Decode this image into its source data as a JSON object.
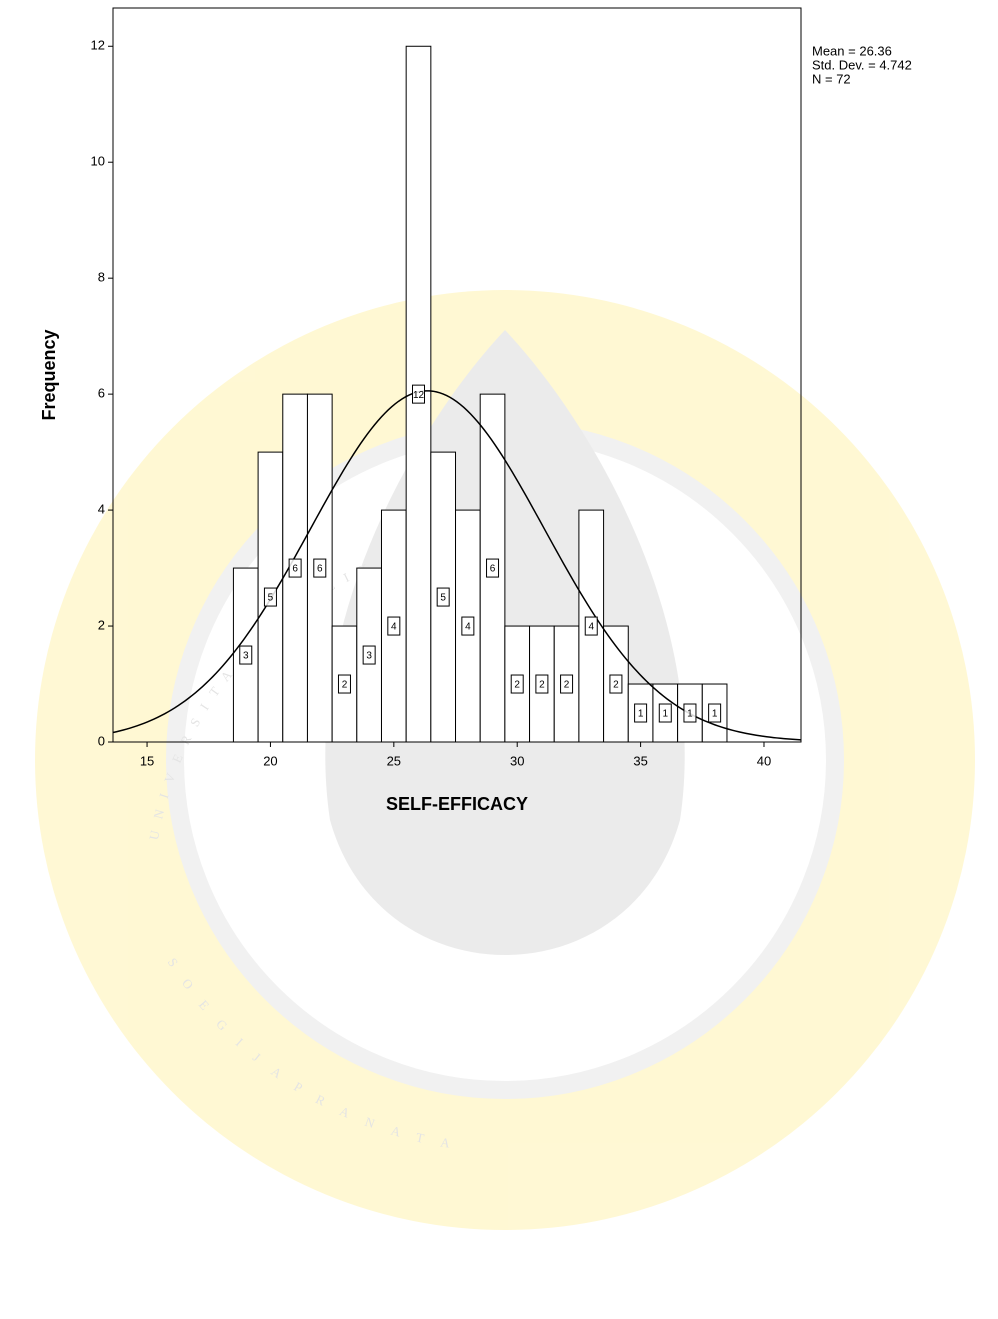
{
  "chart_data": {
    "type": "histogram",
    "x_label": "SELF-EFFICACY",
    "y_label": "Frequency",
    "bins": [
      18.5,
      19.5,
      20.5,
      21.5,
      22.5,
      23.5,
      24.5,
      25.5,
      26.5,
      27.5,
      28.5,
      29.5,
      30.5,
      31.5,
      32.5,
      33.5,
      34.5,
      35.5,
      36.5,
      37.5,
      38.5
    ],
    "values": [
      3,
      5,
      6,
      6,
      2,
      3,
      4,
      12,
      5,
      4,
      6,
      2,
      2,
      2,
      4,
      2,
      1,
      1,
      1,
      1
    ],
    "stats": [
      {
        "value": 26.36,
        "label": "Mean = 26.36"
      },
      {
        "value": 4.742,
        "label": "Std. Dev. = 4.742"
      },
      {
        "value": 72,
        "label": "N = 72"
      }
    ],
    "xlim": [
      13.62,
      41.5
    ],
    "ylim": [
      0,
      12.66
    ],
    "xticks": [
      15,
      20,
      25,
      30,
      35,
      40
    ],
    "yticks": [
      0,
      2,
      4,
      6,
      8,
      10,
      12
    ],
    "color": "#ffffff",
    "curve_color": "#000000"
  },
  "watermark": {
    "top": "UNIVERSITAS KATOLIK",
    "bottom": "SOEGIJAPRANATA"
  }
}
